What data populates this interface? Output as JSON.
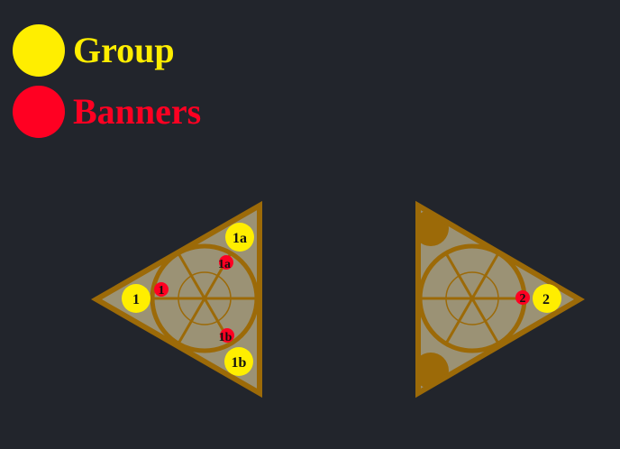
{
  "colors": {
    "background": "#22252c",
    "group": "#ffee00",
    "banner": "#ff0022",
    "arena_fill": "#9b9275",
    "arena_stroke": "#9c6a08",
    "marker_text": "#111111"
  },
  "legend": {
    "group_label": "Group",
    "banners_label": "Banners"
  },
  "arenas": {
    "left": {
      "groups": [
        "1",
        "1a",
        "1b"
      ],
      "banners": [
        "1",
        "1a",
        "1b"
      ]
    },
    "right": {
      "groups": [
        "2"
      ],
      "banners": [
        "2"
      ]
    }
  }
}
